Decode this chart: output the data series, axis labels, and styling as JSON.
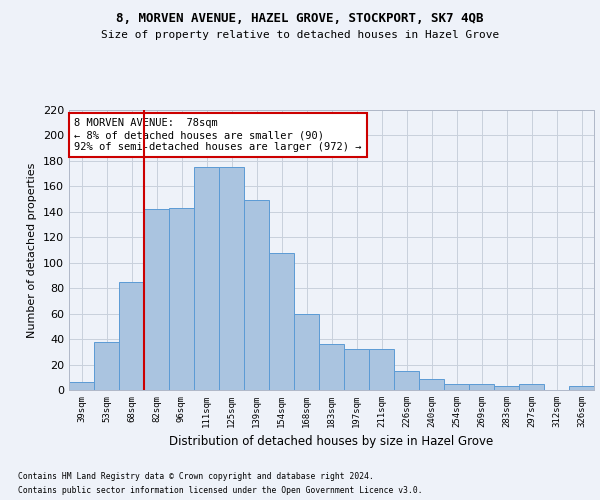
{
  "title1": "8, MORVEN AVENUE, HAZEL GROVE, STOCKPORT, SK7 4QB",
  "title2": "Size of property relative to detached houses in Hazel Grove",
  "xlabel": "Distribution of detached houses by size in Hazel Grove",
  "ylabel": "Number of detached properties",
  "footnote1": "Contains HM Land Registry data © Crown copyright and database right 2024.",
  "footnote2": "Contains public sector information licensed under the Open Government Licence v3.0.",
  "categories": [
    "39sqm",
    "53sqm",
    "68sqm",
    "82sqm",
    "96sqm",
    "111sqm",
    "125sqm",
    "139sqm",
    "154sqm",
    "168sqm",
    "183sqm",
    "197sqm",
    "211sqm",
    "226sqm",
    "240sqm",
    "254sqm",
    "269sqm",
    "283sqm",
    "297sqm",
    "312sqm",
    "326sqm"
  ],
  "values": [
    6,
    38,
    85,
    142,
    143,
    175,
    175,
    149,
    108,
    60,
    36,
    32,
    32,
    15,
    9,
    5,
    5,
    3,
    5,
    0,
    3
  ],
  "bar_color": "#aac4e0",
  "bar_edge_color": "#5b9bd5",
  "vline_color": "#cc0000",
  "ylim": [
    0,
    220
  ],
  "yticks": [
    0,
    20,
    40,
    60,
    80,
    100,
    120,
    140,
    160,
    180,
    200,
    220
  ],
  "annotation_text": "8 MORVEN AVENUE:  78sqm\n← 8% of detached houses are smaller (90)\n92% of semi-detached houses are larger (972) →",
  "annotation_box_color": "#ffffff",
  "annotation_box_edge_color": "#cc0000",
  "bg_color": "#eef2f9"
}
